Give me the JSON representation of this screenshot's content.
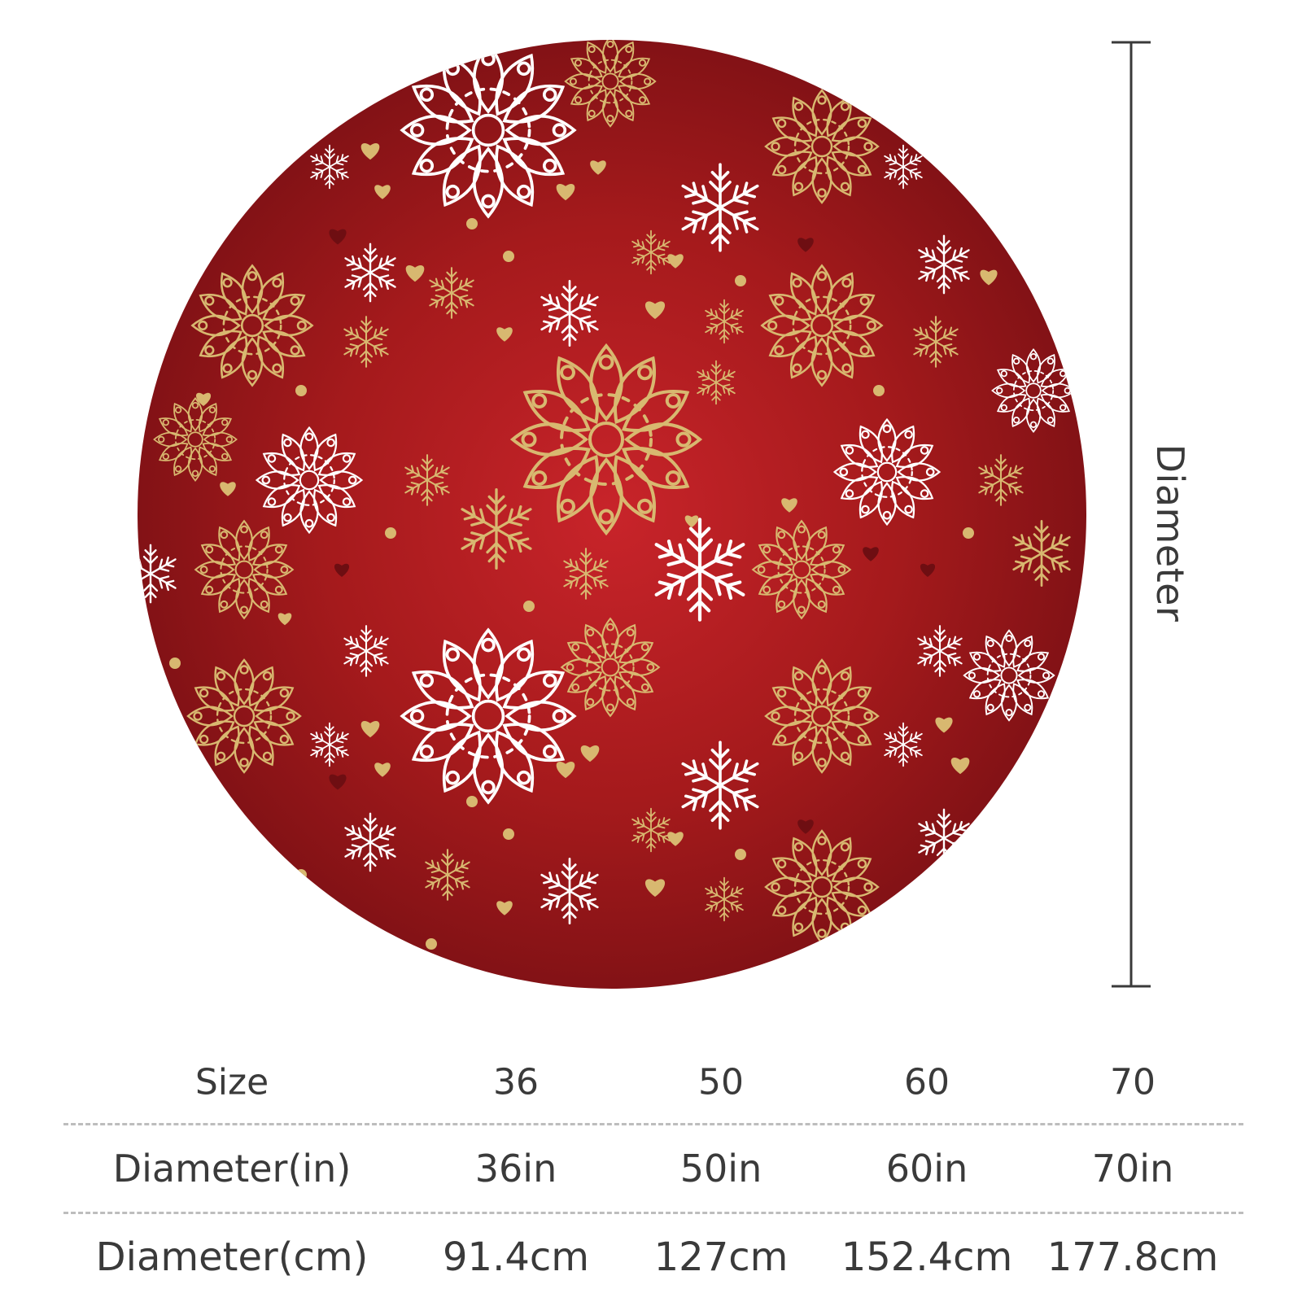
{
  "product": {
    "colors": {
      "background": "#ffffff",
      "rug_base": "#a51a1c",
      "rug_dark": "#6e0e12",
      "gold": "#d8b870",
      "white_flake": "#ffffff",
      "text": "#3a3a3a",
      "divider": "#bdbdbd"
    },
    "pattern_motifs": [
      "white-snowflake-icon",
      "gold-snowflake-icon",
      "gold-heart-icon",
      "red-heart-icon",
      "ornate-mandala-icon"
    ]
  },
  "dimension": {
    "label": "Diameter"
  },
  "size_table": {
    "rows": [
      {
        "header": "Size",
        "values": [
          "36",
          "50",
          "60",
          "70"
        ]
      },
      {
        "header": "Diameter(in)",
        "values": [
          "36in",
          "50in",
          "60in",
          "70in"
        ]
      },
      {
        "header": "Diameter(cm)",
        "values": [
          "91.4cm",
          "127cm",
          "152.4cm",
          "177.8cm"
        ]
      }
    ]
  }
}
